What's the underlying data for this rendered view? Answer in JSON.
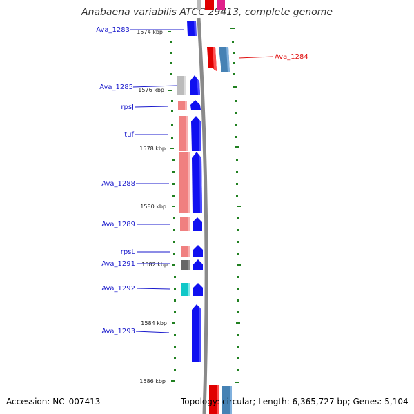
{
  "title": "Anabaena variabilis ATCC 29413, complete genome",
  "footer": {
    "accession": "Accession: NC_007413",
    "topology": "Topology: circular; Length: 6,365,727 bp; Genes: 5,104"
  },
  "colors": {
    "backbone": "#888888",
    "tick": "#208020",
    "label_left": "#1a1acc",
    "label_right": "#e01010",
    "forward_gene": "#1010f0",
    "forward_rna": "#f08080"
  },
  "kbp_labels": [
    "1574 kbp",
    "1576 kbp",
    "1578 kbp",
    "1580 kbp",
    "1582 kbp",
    "1584 kbp",
    "1586 kbp"
  ],
  "gene_labels": [
    "Ava_1283",
    "Ava_1284",
    "Ava_1285",
    "rpsJ",
    "tuf",
    "Ava_1288",
    "Ava_1289",
    "rpsL",
    "Ava_1291",
    "Ava_1292",
    "Ava_1293"
  ]
}
